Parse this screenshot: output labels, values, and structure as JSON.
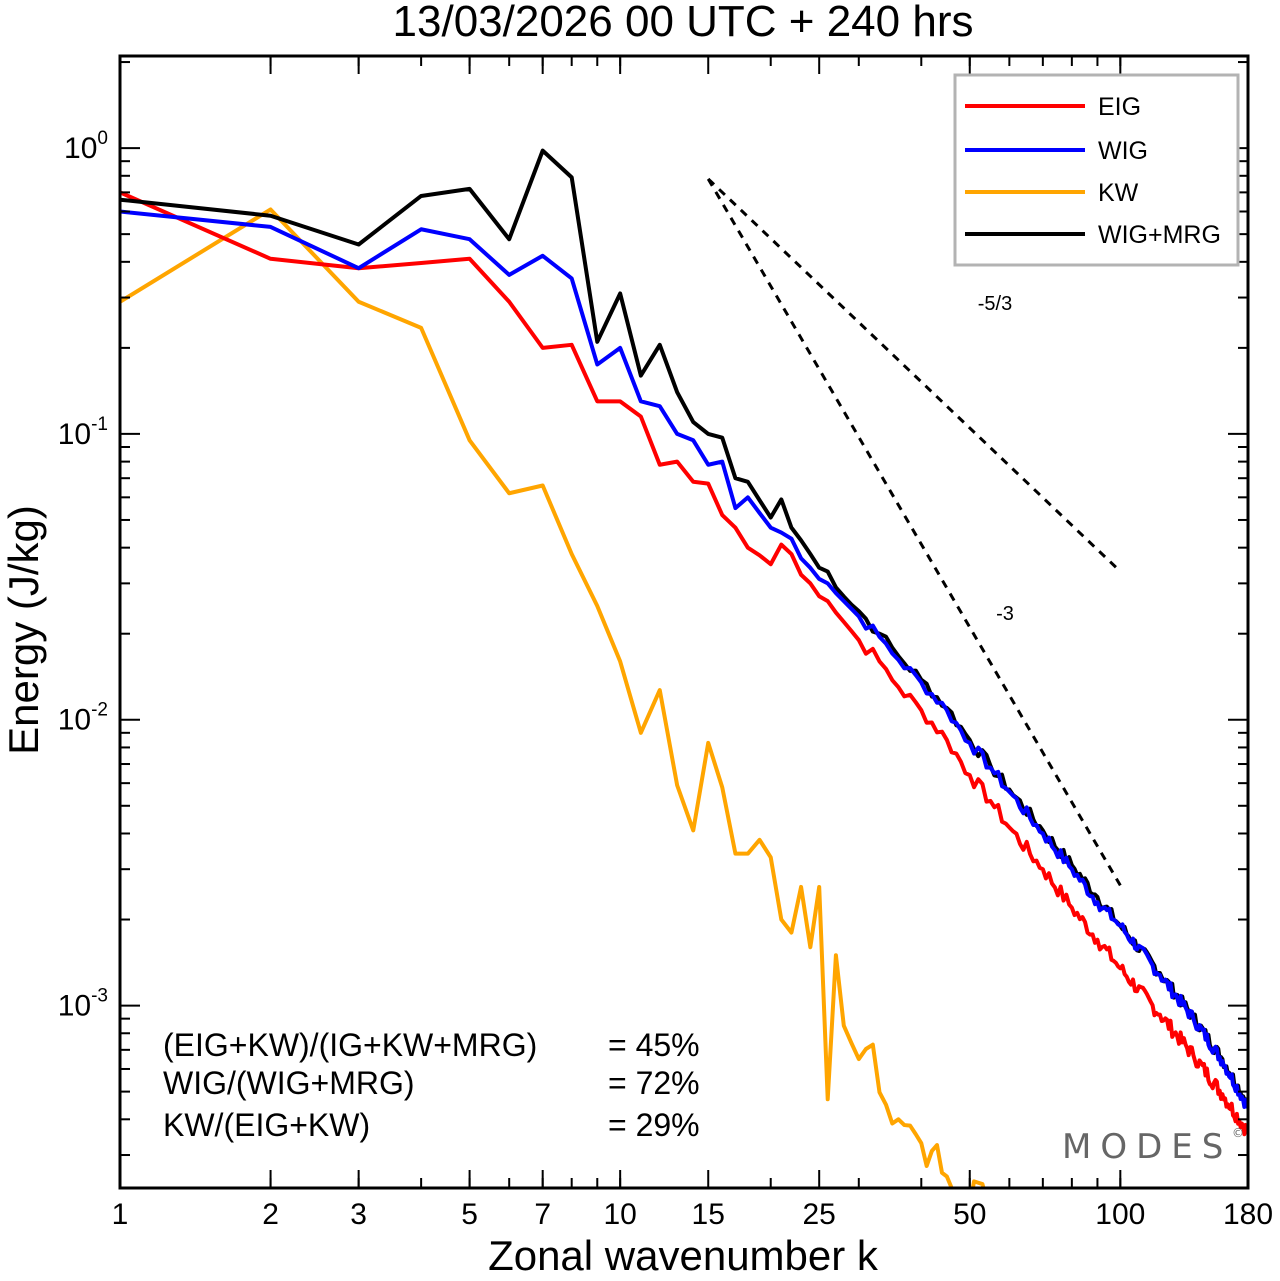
{
  "chart_data": {
    "type": "line",
    "title": "13/03/2026  00 UTC  + 240 hrs",
    "xlabel": "Zonal wavenumber k",
    "ylabel": "Energy (J/kg)",
    "xscale": "log",
    "yscale": "log",
    "xlim": [
      1,
      180
    ],
    "ylim": [
      0.00023,
      2.1
    ],
    "x_ticks": [
      1,
      2,
      3,
      5,
      7,
      10,
      15,
      25,
      50,
      100,
      180
    ],
    "x_tick_labels": [
      "1",
      "2",
      "3",
      "5",
      "7",
      "10",
      "15",
      "25",
      "50",
      "100",
      "180"
    ],
    "y_ticks": [
      {
        "value": 1,
        "base": "10",
        "exp": "0"
      },
      {
        "value": 0.1,
        "base": "10",
        "exp": "-1"
      },
      {
        "value": 0.01,
        "base": "10",
        "exp": "-2"
      },
      {
        "value": 0.001,
        "base": "10",
        "exp": "-3"
      }
    ],
    "legend_position": "top-right",
    "series": [
      {
        "name": "EIG",
        "color": "#ff0000",
        "anchors": [
          [
            1,
            0.7
          ],
          [
            2,
            0.41
          ],
          [
            3,
            0.38
          ],
          [
            5,
            0.41
          ],
          [
            6,
            0.29
          ],
          [
            7,
            0.2
          ],
          [
            8,
            0.205
          ],
          [
            9,
            0.13
          ],
          [
            10,
            0.13
          ],
          [
            11,
            0.115
          ],
          [
            12,
            0.078
          ],
          [
            13,
            0.08
          ],
          [
            14,
            0.068
          ],
          [
            15,
            0.067
          ],
          [
            16,
            0.052
          ],
          [
            17,
            0.047
          ],
          [
            18,
            0.04
          ],
          [
            20,
            0.035
          ],
          [
            21,
            0.041
          ],
          [
            22,
            0.038
          ],
          [
            24,
            0.03
          ],
          [
            26,
            0.026
          ],
          [
            28,
            0.022
          ],
          [
            30,
            0.019
          ],
          [
            33,
            0.016
          ],
          [
            36,
            0.013
          ],
          [
            40,
            0.0108
          ],
          [
            45,
            0.0085
          ],
          [
            50,
            0.0064
          ],
          [
            55,
            0.0052
          ],
          [
            60,
            0.0042
          ],
          [
            70,
            0.003
          ],
          [
            80,
            0.0022
          ],
          [
            90,
            0.0017
          ],
          [
            100,
            0.00135
          ],
          [
            120,
            0.00093
          ],
          [
            140,
            0.00067
          ],
          [
            160,
            0.00049
          ],
          [
            180,
            0.00036
          ]
        ],
        "noise": 0.06
      },
      {
        "name": "WIG",
        "color": "#0000ff",
        "anchors": [
          [
            1,
            0.6
          ],
          [
            2,
            0.53
          ],
          [
            3,
            0.38
          ],
          [
            4,
            0.52
          ],
          [
            5,
            0.48
          ],
          [
            6,
            0.36
          ],
          [
            7,
            0.42
          ],
          [
            8,
            0.35
          ],
          [
            9,
            0.175
          ],
          [
            10,
            0.2
          ],
          [
            11,
            0.13
          ],
          [
            12,
            0.125
          ],
          [
            13,
            0.1
          ],
          [
            14,
            0.095
          ],
          [
            15,
            0.078
          ],
          [
            16,
            0.08
          ],
          [
            17,
            0.055
          ],
          [
            18,
            0.06
          ],
          [
            20,
            0.047
          ],
          [
            22,
            0.043
          ],
          [
            24,
            0.034
          ],
          [
            26,
            0.03
          ],
          [
            28,
            0.026
          ],
          [
            30,
            0.023
          ],
          [
            33,
            0.0195
          ],
          [
            36,
            0.0162
          ],
          [
            40,
            0.0135
          ],
          [
            45,
            0.0108
          ],
          [
            50,
            0.0083
          ],
          [
            55,
            0.0068
          ],
          [
            60,
            0.0056
          ],
          [
            70,
            0.004
          ],
          [
            80,
            0.003
          ],
          [
            90,
            0.0023
          ],
          [
            100,
            0.0019
          ],
          [
            120,
            0.00128
          ],
          [
            140,
            0.0009
          ],
          [
            160,
            0.00064
          ],
          [
            180,
            0.00044
          ]
        ],
        "noise": 0.05
      },
      {
        "name": "KW",
        "color": "#ffa500",
        "anchors": [
          [
            1,
            0.29
          ],
          [
            2,
            0.61
          ],
          [
            3,
            0.29
          ],
          [
            4,
            0.235
          ],
          [
            5,
            0.095
          ],
          [
            6,
            0.062
          ],
          [
            7,
            0.066
          ],
          [
            8,
            0.038
          ],
          [
            9,
            0.025
          ],
          [
            10,
            0.016
          ],
          [
            11,
            0.009
          ],
          [
            12,
            0.0127
          ],
          [
            13,
            0.0059
          ],
          [
            14,
            0.0041
          ],
          [
            15,
            0.0083
          ],
          [
            16,
            0.0058
          ],
          [
            17,
            0.0034
          ],
          [
            18,
            0.0034
          ],
          [
            19,
            0.0038
          ],
          [
            20,
            0.0033
          ],
          [
            21,
            0.002
          ],
          [
            22,
            0.0018
          ],
          [
            23,
            0.0026
          ],
          [
            24,
            0.0016
          ],
          [
            25,
            0.0026
          ],
          [
            26,
            0.00047
          ],
          [
            27,
            0.0015
          ],
          [
            28,
            0.00085
          ],
          [
            30,
            0.00065
          ],
          [
            32,
            0.00073
          ],
          [
            34,
            0.00045
          ],
          [
            36,
            0.0004
          ],
          [
            38,
            0.00038
          ],
          [
            40,
            0.00033
          ],
          [
            42,
            0.00031
          ],
          [
            44,
            0.00026
          ],
          [
            46,
            0.00023
          ],
          [
            48,
            0.00021
          ],
          [
            50,
            0.0002
          ],
          [
            52,
            0.00024
          ],
          [
            54,
            0.00021
          ]
        ],
        "noise": 0.18
      },
      {
        "name": "WIG+MRG",
        "color": "#000000",
        "anchors": [
          [
            1,
            0.66
          ],
          [
            2,
            0.58
          ],
          [
            3,
            0.46
          ],
          [
            4,
            0.68
          ],
          [
            5,
            0.72
          ],
          [
            6,
            0.48
          ],
          [
            7,
            0.98
          ],
          [
            8,
            0.79
          ],
          [
            9,
            0.21
          ],
          [
            10,
            0.31
          ],
          [
            11,
            0.16
          ],
          [
            12,
            0.205
          ],
          [
            13,
            0.14
          ],
          [
            14,
            0.11
          ],
          [
            15,
            0.1
          ],
          [
            16,
            0.097
          ],
          [
            17,
            0.07
          ],
          [
            18,
            0.068
          ],
          [
            20,
            0.051
          ],
          [
            21,
            0.059
          ],
          [
            22,
            0.047
          ],
          [
            24,
            0.038
          ],
          [
            26,
            0.033
          ],
          [
            28,
            0.027
          ],
          [
            30,
            0.024
          ],
          [
            33,
            0.02
          ],
          [
            36,
            0.0167
          ],
          [
            40,
            0.0138
          ],
          [
            45,
            0.011
          ],
          [
            50,
            0.0085
          ],
          [
            55,
            0.0069
          ],
          [
            60,
            0.0057
          ],
          [
            70,
            0.0041
          ],
          [
            80,
            0.0031
          ],
          [
            90,
            0.0024
          ],
          [
            100,
            0.0019
          ],
          [
            120,
            0.0013
          ],
          [
            140,
            0.00091
          ],
          [
            160,
            0.00065
          ],
          [
            180,
            0.00045
          ]
        ],
        "noise": 0.05
      }
    ],
    "reference_slopes": [
      {
        "label": "-5/3",
        "slope": -1.6667,
        "x_start": 15,
        "x_end": 100,
        "y_start": 0.78
      },
      {
        "label": "-3",
        "slope": -3,
        "x_start": 15,
        "x_end": 100,
        "y_start": 0.78
      }
    ],
    "ratios": [
      {
        "label": "(EIG+KW)/(IG+KW+MRG)",
        "value": "= 45%"
      },
      {
        "label": "WIG/(WIG+MRG)",
        "value": "= 72%"
      },
      {
        "label": "KW/(EIG+KW)",
        "value": "= 29%"
      }
    ],
    "brand": "MODES",
    "brand_mark": "©"
  }
}
